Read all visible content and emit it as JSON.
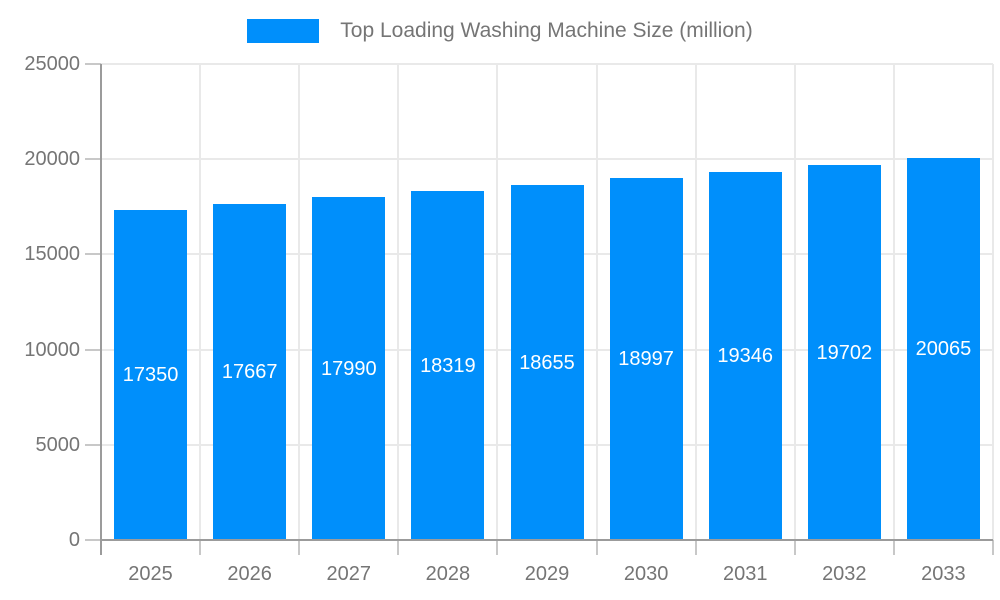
{
  "chart_data": {
    "type": "bar",
    "title": "Top Loading Washing Machine Size (million)",
    "categories": [
      "2025",
      "2026",
      "2027",
      "2028",
      "2029",
      "2030",
      "2031",
      "2032",
      "2033"
    ],
    "series": [
      {
        "name": "Top Loading Washing Machine Size (million)",
        "values": [
          17350,
          17667,
          17990,
          18319,
          18655,
          18997,
          19346,
          19702,
          20065
        ]
      }
    ],
    "xlabel": "",
    "ylabel": "",
    "ylim": [
      0,
      25000
    ],
    "y_ticks": [
      0,
      5000,
      10000,
      15000,
      20000,
      25000
    ],
    "grid": true,
    "value_labels": true,
    "legend_position": "top",
    "colors": {
      "bar": "#008FFB",
      "axis_label": "#757575",
      "axis_line": "#9B9B9B",
      "tick": "#C8C8C8",
      "grid_line": "#E9E9E9",
      "value_label": "#FFFFFF",
      "background": "#FFFFFF"
    }
  }
}
